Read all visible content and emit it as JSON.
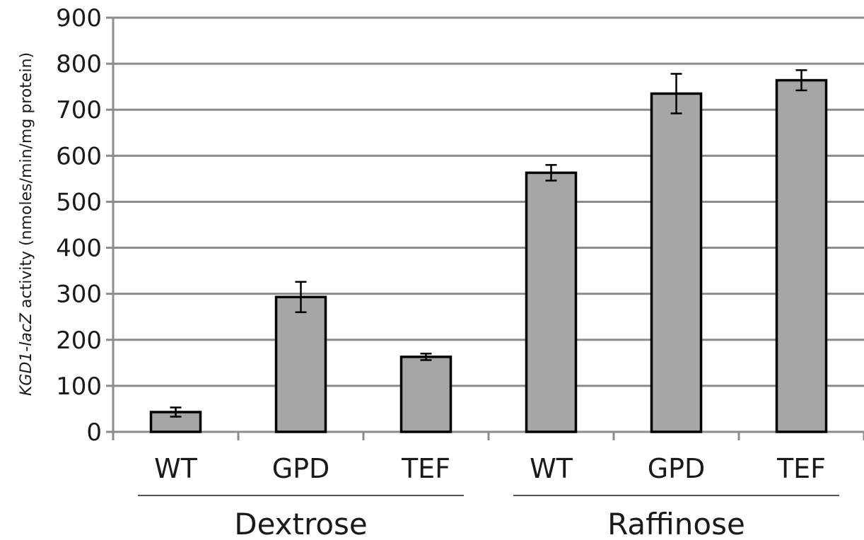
{
  "chart_data": {
    "type": "bar",
    "categories": [
      "WT",
      "GPD",
      "TEF",
      "WT",
      "GPD",
      "TEF"
    ],
    "groups": [
      {
        "label": "Dextrose",
        "categories": [
          "WT",
          "GPD",
          "TEF"
        ]
      },
      {
        "label": "Raffinose",
        "categories": [
          "WT",
          "GPD",
          "TEF"
        ]
      }
    ],
    "values": [
      43,
      293,
      163,
      563,
      735,
      764
    ],
    "errors": [
      10,
      33,
      7,
      17,
      43,
      22
    ],
    "ylabel_italic": "KGD1-lacZ",
    "ylabel_rest": " activity (nmoles/min/mg protein)",
    "ylim": [
      0,
      900
    ],
    "yticks": [
      0,
      100,
      200,
      300,
      400,
      500,
      600,
      700,
      800,
      900
    ],
    "grid": true,
    "bar_color": "#a6a6a6",
    "bar_edge_color": "#000000",
    "grid_color": "#8c8c8c"
  }
}
